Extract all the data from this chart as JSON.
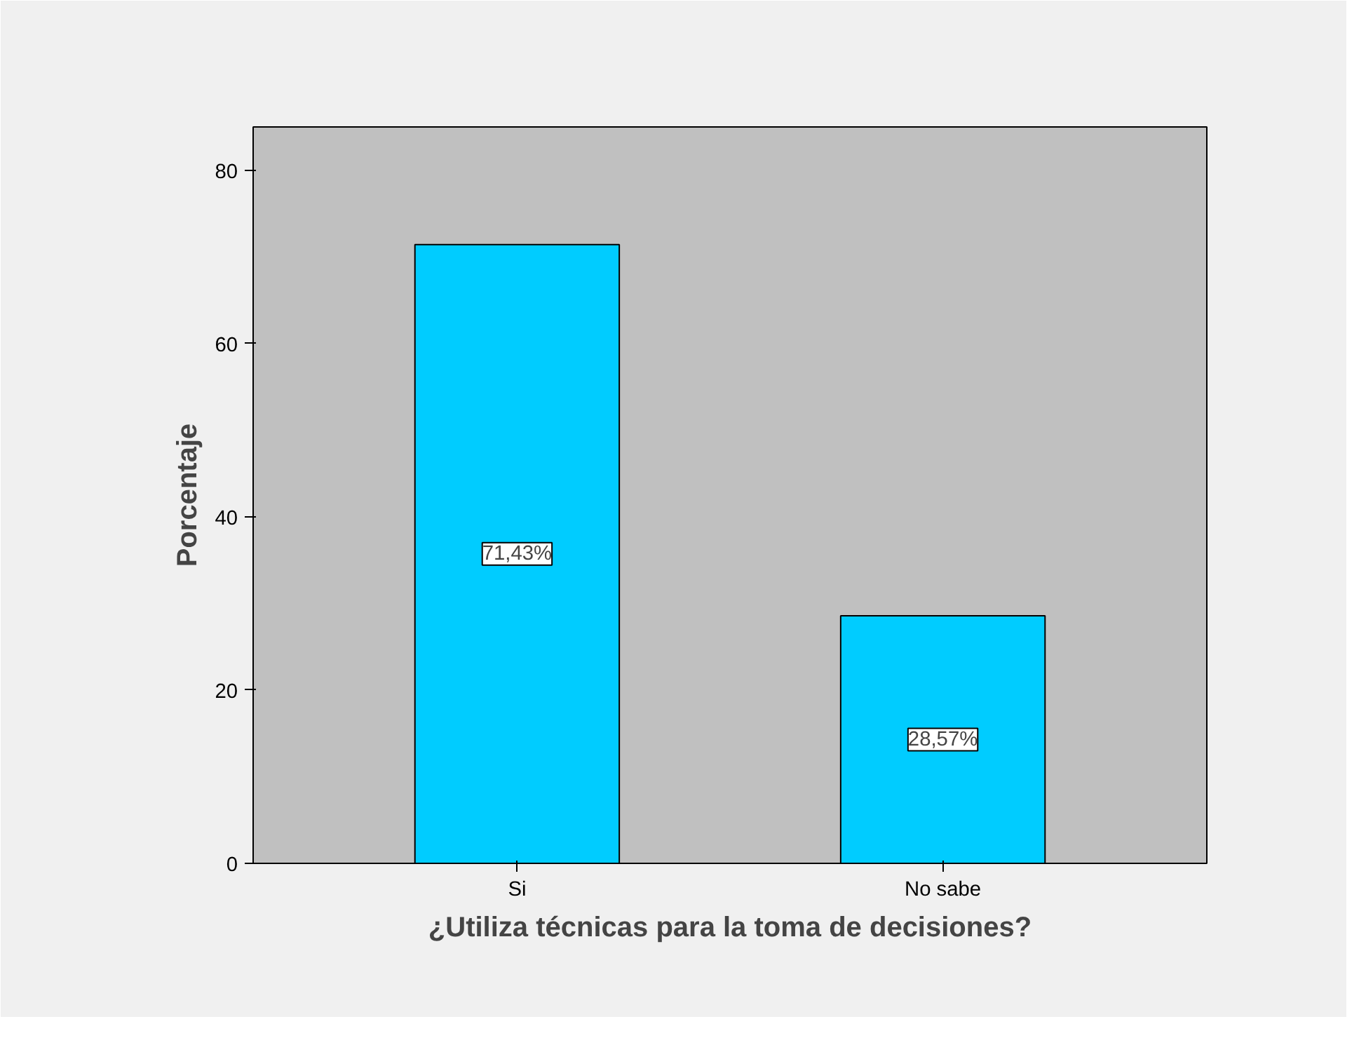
{
  "chart_data": {
    "type": "bar",
    "xlabel": "¿Utiliza técnicas para la toma de decisiones?",
    "ylabel": "Porcentaje",
    "categories": [
      "Si",
      "No sabe"
    ],
    "values": [
      71.43,
      28.57
    ],
    "value_labels": [
      "71,43%",
      "28,57%"
    ],
    "color": "#00ccff",
    "ylim": [
      0,
      85
    ],
    "yticks": [
      0,
      20,
      40,
      60,
      80
    ],
    "grid": false
  }
}
